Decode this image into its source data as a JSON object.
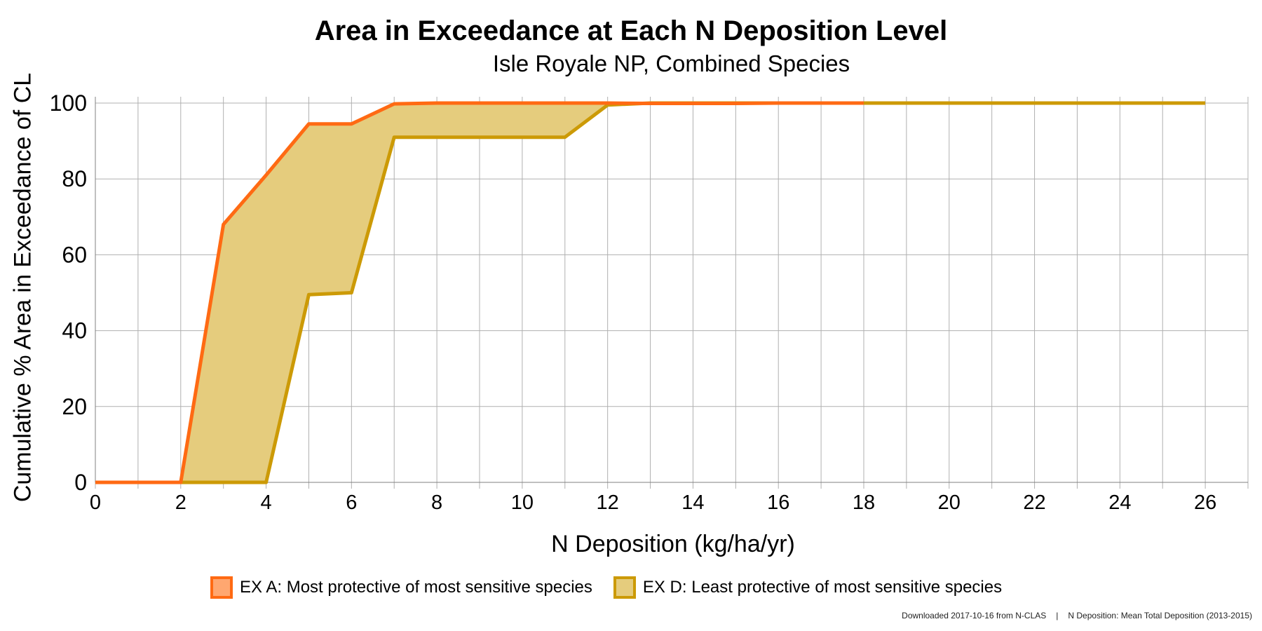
{
  "chart_data": {
    "type": "area",
    "title": "Area in Exceedance at Each N Deposition Level",
    "subtitle": "Isle Royale NP, Combined Species",
    "xlabel": "N Deposition (kg/ha/yr)",
    "ylabel": "Cumulative % Area in Exceedance of CL",
    "xlim": [
      0,
      27
    ],
    "ylim": [
      0,
      100
    ],
    "x_ticks": [
      0,
      2,
      4,
      6,
      8,
      10,
      12,
      14,
      16,
      18,
      20,
      22,
      24,
      26
    ],
    "y_ticks": [
      0,
      20,
      40,
      60,
      80,
      100
    ],
    "grid": true,
    "legend_position": "bottom",
    "fill_between_color": "#e5cc7d",
    "series": [
      {
        "name": "EX A: Most protective of most sensitive species",
        "color": "#ff6a13",
        "swatch_fill": "#ffa770",
        "x": [
          0,
          1,
          2,
          3,
          4,
          5,
          6,
          7,
          8,
          9,
          10,
          11,
          12,
          13,
          14,
          15,
          16,
          17,
          18
        ],
        "y": [
          0,
          0,
          0,
          68,
          81,
          94.5,
          94.5,
          99.8,
          100,
          100,
          100,
          100,
          100,
          99.9,
          99.9,
          99.9,
          100,
          100,
          100
        ]
      },
      {
        "name": "EX D: Least protective of most sensitive species",
        "color": "#cc9a06",
        "swatch_fill": "#e5cc7d",
        "x": [
          0,
          1,
          2,
          3,
          4,
          5,
          6,
          7,
          8,
          9,
          10,
          11,
          12,
          13,
          14,
          15,
          16,
          17,
          18,
          19,
          20,
          21,
          22,
          23,
          24,
          25,
          26
        ],
        "y": [
          0,
          0,
          0,
          0,
          0,
          49.5,
          50,
          91,
          91,
          91,
          91,
          91,
          99.5,
          100,
          100,
          100,
          100,
          100,
          100,
          100,
          100,
          100,
          100,
          100,
          100,
          100,
          100
        ]
      }
    ]
  },
  "footer": {
    "source": "Downloaded 2017-10-16 from N-CLAS",
    "separator": "|",
    "note": "N Deposition: Mean Total Deposition (2013-2015)"
  }
}
